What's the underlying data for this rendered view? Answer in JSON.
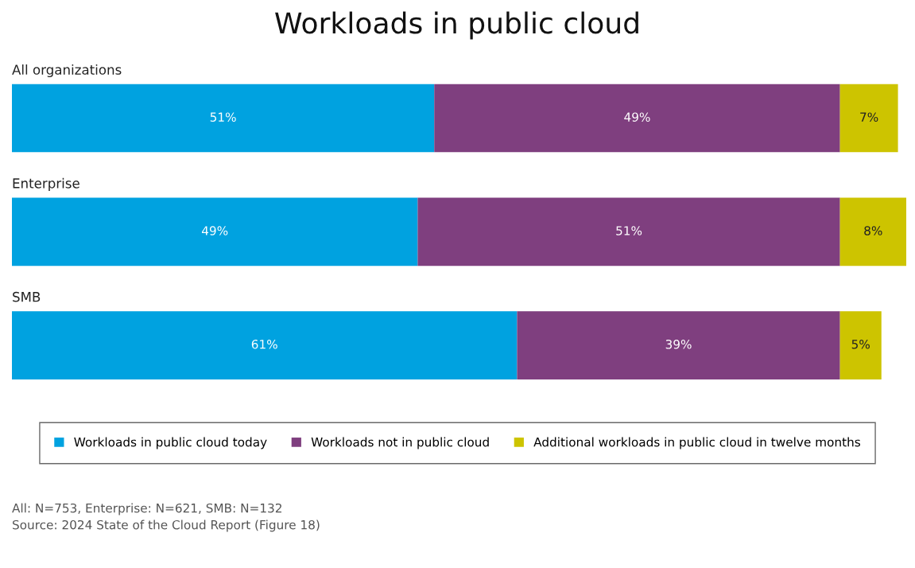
{
  "chart_data": {
    "type": "bar",
    "orientation": "horizontal",
    "stacked": true,
    "title": "Workloads in public cloud",
    "categories": [
      "All organizations",
      "Enterprise",
      "SMB"
    ],
    "series": [
      {
        "name": "Workloads in public cloud today",
        "color": "#00a2e0",
        "values": [
          51,
          49,
          61
        ],
        "value_labels": [
          "51%",
          "49%",
          "61%"
        ]
      },
      {
        "name": "Workloads not in public cloud",
        "color": "#7f3f7f",
        "values": [
          49,
          51,
          39
        ],
        "value_labels": [
          "49%",
          "51%",
          "39%"
        ]
      },
      {
        "name": "Additional workloads in public cloud in twelve months",
        "color": "#cdc400",
        "values": [
          7,
          8,
          5
        ],
        "value_labels": [
          "7%",
          "8%",
          "5%"
        ]
      }
    ],
    "legend": "bottom",
    "annotations": [
      "All: N=753, Enterprise: N=621, SMB: N=132",
      "Source: 2024 State of the Cloud Report (Figure 18)"
    ]
  }
}
